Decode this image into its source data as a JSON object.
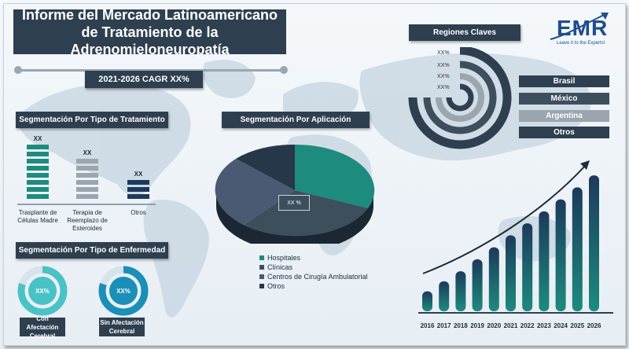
{
  "title": "Informe del Mercado Latinoamericano de Tratamiento de la Adrenomieloneuropatía",
  "cagr": "2021-2026 CAGR XX%",
  "logo": {
    "text": "EMR",
    "tagline": "Leave it to the Experts!"
  },
  "colors": {
    "dark": "#2e3f50",
    "teal": "#1d8b7e",
    "teal_light": "#49c2c6",
    "slate": "#3d4e5c",
    "gray": "#9aa5ae",
    "navy": "#1c3a5c"
  },
  "treatment": {
    "title": "Segmentación Por Tipo de Tratamiento",
    "items": [
      {
        "label": "Trasplante de Células Madre",
        "value": "XX",
        "segments": 8,
        "color": "#1d8b7e"
      },
      {
        "label": "Terapia de Reemplazo de Esteroides",
        "value": "XX",
        "segments": 6,
        "color": "#9aa5ae"
      },
      {
        "label": "Otros",
        "value": "XX",
        "segments": 3,
        "color": "#1c3a5c"
      }
    ]
  },
  "disease": {
    "title": "Segmentación Por Tipo de Enfermedad",
    "items": [
      {
        "label": "Con Afectación Cerebral",
        "value": "XX%",
        "fraction": 0.8,
        "color": "#49c2c6"
      },
      {
        "label": "Sin Afectación Cerebral",
        "value": "XX%",
        "fraction": 0.8,
        "color": "#1a8fb8"
      }
    ]
  },
  "application": {
    "title": "Segmentación Por Aplicación",
    "center_label": "XX %",
    "legend": [
      {
        "name": "Hospitales",
        "color": "#1d8b7e"
      },
      {
        "name": "Clínicas",
        "color": "#3d4e5c"
      },
      {
        "name": "Centros de Cirugía Ambulatorial",
        "color": "#4a5a72"
      },
      {
        "name": "Otros",
        "color": "#26374a"
      }
    ]
  },
  "regions": {
    "title": "Regiones Claves",
    "arc_labels": [
      "XX%",
      "XX%",
      "XX%",
      "XX%"
    ],
    "items": [
      {
        "name": "Brasil",
        "color": "#2e3f50"
      },
      {
        "name": "México",
        "color": "#3d4e5c"
      },
      {
        "name": "Argentina",
        "color": "#9aa5ae"
      },
      {
        "name": "Otros",
        "color": "#2e3f50"
      }
    ]
  },
  "chart_data": {
    "type": "bar",
    "categories": [
      "2016",
      "2017",
      "2018",
      "2019",
      "2020",
      "2021",
      "2022",
      "2023",
      "2024",
      "2025",
      "2026"
    ],
    "values": [
      1,
      1.5,
      2,
      2.6,
      3.2,
      3.8,
      4.4,
      5.0,
      5.6,
      6.2,
      6.8
    ],
    "ylim": [
      0,
      7
    ]
  }
}
